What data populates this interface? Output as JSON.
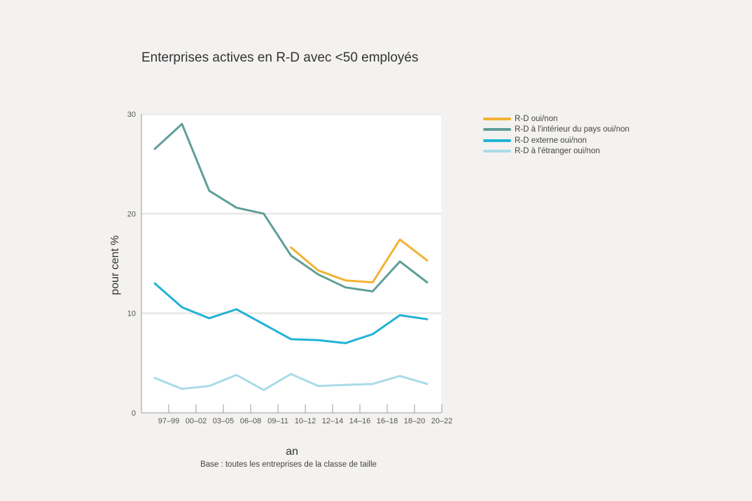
{
  "chart_data": {
    "type": "line",
    "title": "Enterprises actives en R-D avec <50 employés",
    "xlabel": "an",
    "ylabel": "pour cent %",
    "note": "Base : toutes les entreprises de la classe de taille",
    "categories": [
      "97–99",
      "00–02",
      "03–05",
      "06–08",
      "09–11",
      "10–12",
      "12–14",
      "14–16",
      "16–18",
      "18–20",
      "20–22"
    ],
    "x_tick_labels": [
      "97–99",
      "00–02",
      "03–05",
      "06–08",
      "09–11",
      "10–12",
      "12–14",
      "14–16",
      "16–18",
      "18–20",
      "20–22"
    ],
    "y_ticks": [
      0,
      10,
      20,
      30
    ],
    "ylim": [
      0,
      30
    ],
    "grid": true,
    "legend_position": "top-right",
    "series": [
      {
        "name": "R-D oui/non",
        "color": "#f2b233",
        "values": [
          null,
          null,
          null,
          null,
          null,
          16.6,
          14.3,
          13.3,
          13.1,
          17.4,
          15.3
        ]
      },
      {
        "name": "R-D à l'intérieur du pays oui/non",
        "color": "#5f9e98",
        "values": [
          26.5,
          29.0,
          22.3,
          20.6,
          20.0,
          15.8,
          13.9,
          12.6,
          12.2,
          15.2,
          13.1
        ]
      },
      {
        "name": "R-D externe oui/non",
        "color": "#21b3d6",
        "values": [
          13.0,
          10.6,
          9.5,
          10.4,
          8.9,
          7.4,
          7.3,
          7.0,
          7.9,
          9.8,
          9.4
        ]
      },
      {
        "name": "R-D à l'étranger oui/non",
        "color": "#a9dbe8",
        "values": [
          3.5,
          2.4,
          2.7,
          3.8,
          2.3,
          3.9,
          2.7,
          2.8,
          2.9,
          3.7,
          2.9
        ]
      }
    ]
  }
}
